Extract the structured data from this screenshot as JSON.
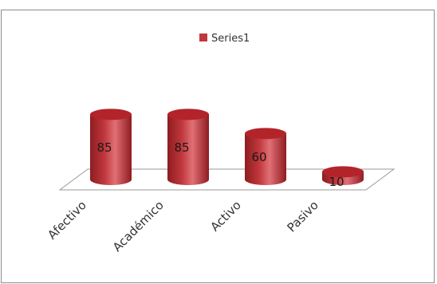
{
  "chart_data": {
    "type": "bar",
    "style": "3d-cylinder",
    "categories": [
      "Afectivo",
      "Académico",
      "Activo",
      "Pasivo"
    ],
    "series": [
      {
        "name": "Series1",
        "values": [
          85,
          85,
          60,
          10
        ]
      }
    ],
    "data_labels": [
      "85",
      "85",
      "60",
      "10"
    ],
    "ylim": [
      0,
      100
    ],
    "legend": "top-center",
    "grid": false,
    "colors": {
      "series": "#c0383d",
      "series_dark": "#8e1c20",
      "series_light": "#e07075",
      "top": "#b3242a",
      "floor": "#ffffff",
      "floor_stroke": "#9a9a9a",
      "frame": "#8c8c8c",
      "text": "#333333"
    }
  }
}
